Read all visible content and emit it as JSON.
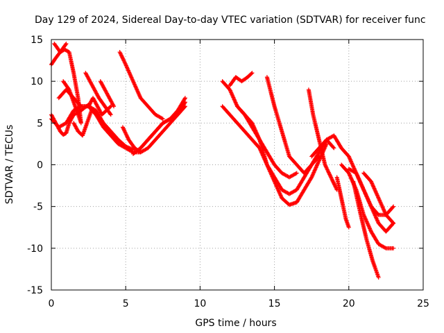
{
  "chart_data": {
    "type": "scatter",
    "title": "Day 129 of 2024, Sidereal Day-to-day VTEC variation (SDTVAR) for receiver func",
    "xlabel": "GPS time / hours",
    "ylabel": "SDTVAR / TECUs",
    "xlim": [
      0,
      25
    ],
    "ylim": [
      -15,
      15
    ],
    "xticks": [
      "0",
      "5",
      "10",
      "15",
      "20",
      "25"
    ],
    "yticks": [
      "-15",
      "-10",
      "-5",
      "0",
      "5",
      "10",
      "15"
    ],
    "grid": true,
    "legend": "none",
    "series_color": "#ff0000",
    "series": [
      {
        "name": "s1",
        "x": [
          0.0,
          0.3,
          0.6,
          0.9,
          1.2,
          1.5,
          1.8,
          2.0
        ],
        "y": [
          12,
          12.8,
          13.5,
          13.8,
          13.5,
          11,
          8,
          5
        ]
      },
      {
        "name": "s2",
        "x": [
          0.0,
          0.3,
          0.6,
          0.8,
          1.0,
          1.2,
          1.5,
          2.0,
          2.5,
          2.8
        ],
        "y": [
          6,
          5,
          4,
          3.6,
          3.8,
          5,
          6,
          6.5,
          7.2,
          6.5
        ]
      },
      {
        "name": "s3",
        "x": [
          0.2,
          0.4,
          0.6,
          0.8,
          1.0
        ],
        "y": [
          14.5,
          14,
          13.5,
          14,
          14.5
        ]
      },
      {
        "name": "s4",
        "x": [
          0.0,
          0.5,
          1.0,
          1.5,
          2.0,
          2.5,
          3.0,
          3.5,
          4.0,
          4.5,
          5.0,
          5.5,
          6.0
        ],
        "y": [
          5.5,
          4.5,
          5,
          6.5,
          7,
          7,
          6,
          4.5,
          3.5,
          2.5,
          2,
          1.5,
          1.5
        ]
      },
      {
        "name": "s5",
        "x": [
          0.5,
          1.0,
          1.5,
          2.0,
          2.5,
          3.0,
          3.5,
          4.0,
          4.5,
          5.0,
          5.5
        ],
        "y": [
          8,
          9,
          8,
          7,
          7,
          6.5,
          5,
          4,
          3,
          2.2,
          1.8
        ]
      },
      {
        "name": "s6",
        "x": [
          0.8,
          1.2,
          1.6,
          2.0
        ],
        "y": [
          10,
          9,
          7,
          5
        ]
      },
      {
        "name": "s7",
        "x": [
          1.5,
          1.8,
          2.1,
          2.4,
          2.7
        ],
        "y": [
          5,
          4,
          3.5,
          5,
          6.5
        ]
      },
      {
        "name": "s8",
        "x": [
          2.3,
          2.6,
          2.9,
          3.2,
          3.6,
          4.0
        ],
        "y": [
          11,
          10,
          9,
          8,
          7,
          6
        ]
      },
      {
        "name": "s9",
        "x": [
          2.5,
          2.8,
          3.1,
          3.4,
          3.7,
          4.0
        ],
        "y": [
          7,
          8,
          7,
          6,
          6.5,
          7
        ]
      },
      {
        "name": "s10",
        "x": [
          3.3,
          3.6,
          3.9,
          4.2
        ],
        "y": [
          10,
          9,
          8,
          7
        ]
      },
      {
        "name": "s11",
        "x": [
          4.6,
          5.0,
          5.5,
          6.0,
          6.5,
          7.0,
          7.5
        ],
        "y": [
          13.5,
          12,
          10,
          8,
          7,
          6,
          5.5
        ]
      },
      {
        "name": "s12",
        "x": [
          4.8,
          5.2,
          5.6,
          6.0,
          6.5,
          7.0,
          7.5,
          8.0,
          8.5,
          9.0
        ],
        "y": [
          4.5,
          3,
          2,
          1.5,
          2,
          3,
          4,
          5,
          6,
          7.5
        ]
      },
      {
        "name": "s13",
        "x": [
          5.5,
          6.0,
          6.5,
          7.0,
          7.5,
          8.0,
          8.5,
          9.0
        ],
        "y": [
          1.3,
          2,
          3,
          4,
          5,
          5.5,
          6.5,
          8
        ]
      },
      {
        "name": "s14",
        "x": [
          6.0,
          6.5,
          7.0,
          7.5,
          8.0,
          8.5,
          9.0
        ],
        "y": [
          2,
          3,
          4,
          5,
          5.5,
          6,
          7
        ]
      },
      {
        "name": "s15",
        "x": [
          11.5,
          12.0,
          12.5,
          13.0,
          13.5,
          14.0,
          14.5,
          15.0,
          15.5,
          16.0,
          16.5,
          17.0,
          17.5,
          18.0,
          18.5
        ],
        "y": [
          10,
          9,
          7,
          6,
          5,
          3,
          0,
          -2,
          -4,
          -4.8,
          -4.5,
          -3,
          -1.5,
          0.5,
          2.5
        ]
      },
      {
        "name": "s16",
        "x": [
          11.5,
          12.0,
          12.5,
          13.0,
          13.5,
          14.0,
          14.5,
          15.0,
          15.5,
          16.0,
          16.5,
          17.0,
          17.5,
          18.0,
          18.5,
          19.0
        ],
        "y": [
          7,
          6,
          5,
          4,
          3,
          2,
          0,
          -1.5,
          -3,
          -3.5,
          -3,
          -1.5,
          0,
          1.5,
          3,
          2
        ]
      },
      {
        "name": "s17",
        "x": [
          12.0,
          12.4,
          12.8,
          13.2,
          13.5
        ],
        "y": [
          9.5,
          10.5,
          10,
          10.5,
          11
        ]
      },
      {
        "name": "s18",
        "x": [
          12.5,
          13.0,
          13.5,
          14.0,
          14.5,
          15.0,
          15.5,
          16.0,
          16.5
        ],
        "y": [
          7,
          6,
          4.5,
          3,
          1.5,
          0,
          -1,
          -1.5,
          -1
        ]
      },
      {
        "name": "s19",
        "x": [
          14.5,
          15.0,
          15.5,
          16.0,
          16.5,
          17.0,
          17.5,
          18.0
        ],
        "y": [
          10.5,
          7,
          4,
          1,
          0,
          -1,
          0,
          1
        ]
      },
      {
        "name": "s20",
        "x": [
          17.3,
          17.6,
          18.0,
          18.4,
          18.8,
          19.2
        ],
        "y": [
          9,
          6,
          3,
          0,
          -1.5,
          -3
        ]
      },
      {
        "name": "s21",
        "x": [
          17.5,
          18.0,
          18.5,
          19.0,
          19.5,
          20.0,
          20.5,
          21.0,
          21.5,
          22.0,
          22.5,
          23.0
        ],
        "y": [
          1,
          2,
          3,
          3.5,
          2,
          1,
          -1,
          -3,
          -5,
          -6,
          -6,
          -5
        ]
      },
      {
        "name": "s22",
        "x": [
          19.2,
          19.5,
          19.8,
          20.0
        ],
        "y": [
          -1.5,
          -4,
          -6.5,
          -7.5
        ]
      },
      {
        "name": "s23",
        "x": [
          19.5,
          20.0,
          20.5,
          21.0,
          21.5,
          22.0,
          22.5,
          23.0
        ],
        "y": [
          0,
          -1,
          -3,
          -6,
          -8,
          -9.5,
          -10,
          -10
        ]
      },
      {
        "name": "s24",
        "x": [
          20.0,
          20.5,
          21.0,
          21.5,
          22.0,
          22.5,
          23.0
        ],
        "y": [
          -0.5,
          -1,
          -3,
          -5,
          -7,
          -8,
          -7
        ]
      },
      {
        "name": "s25",
        "x": [
          20.3,
          20.8,
          21.2,
          21.6,
          22.0
        ],
        "y": [
          -2,
          -6,
          -9,
          -11.5,
          -13.5
        ]
      },
      {
        "name": "s26",
        "x": [
          21.0,
          21.5,
          22.0,
          22.5,
          23.0
        ],
        "y": [
          -1,
          -2,
          -4,
          -6,
          -7
        ]
      }
    ]
  }
}
